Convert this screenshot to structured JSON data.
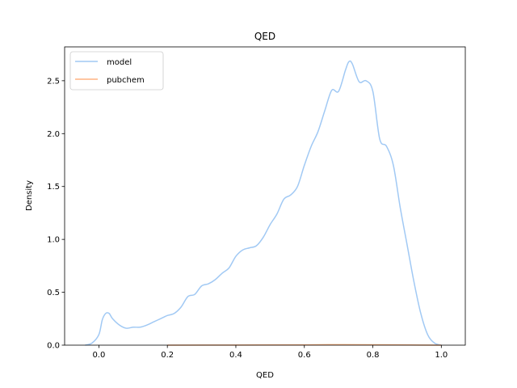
{
  "chart_data": {
    "type": "line",
    "title": "QED",
    "xlabel": "QED",
    "ylabel": "Density",
    "xlim": [
      -0.1,
      1.07
    ],
    "ylim": [
      0,
      2.82
    ],
    "xticks": [
      0.0,
      0.2,
      0.4,
      0.6,
      0.8,
      1.0
    ],
    "xtick_labels": [
      "0.0",
      "0.2",
      "0.4",
      "0.6",
      "0.8",
      "1.0"
    ],
    "yticks": [
      0.0,
      0.5,
      1.0,
      1.5,
      2.0,
      2.5
    ],
    "ytick_labels": [
      "0.0",
      "0.5",
      "1.0",
      "1.5",
      "2.0",
      "2.5"
    ],
    "grid": false,
    "legend_position": "top-left",
    "series": [
      {
        "name": "model",
        "color": "#a1c9f4",
        "x": [
          -0.04,
          -0.02,
          0.0,
          0.01,
          0.02,
          0.03,
          0.04,
          0.06,
          0.08,
          0.1,
          0.12,
          0.14,
          0.16,
          0.18,
          0.2,
          0.22,
          0.24,
          0.26,
          0.28,
          0.3,
          0.32,
          0.34,
          0.36,
          0.38,
          0.4,
          0.42,
          0.44,
          0.46,
          0.48,
          0.5,
          0.52,
          0.54,
          0.56,
          0.58,
          0.6,
          0.62,
          0.64,
          0.66,
          0.68,
          0.7,
          0.72,
          0.73,
          0.74,
          0.76,
          0.78,
          0.8,
          0.82,
          0.84,
          0.86,
          0.88,
          0.9,
          0.92,
          0.94,
          0.96,
          0.98,
          1.0
        ],
        "y": [
          0.0,
          0.02,
          0.1,
          0.24,
          0.3,
          0.3,
          0.25,
          0.19,
          0.16,
          0.17,
          0.17,
          0.19,
          0.22,
          0.25,
          0.28,
          0.3,
          0.36,
          0.46,
          0.48,
          0.56,
          0.58,
          0.62,
          0.68,
          0.73,
          0.84,
          0.9,
          0.92,
          0.94,
          1.02,
          1.14,
          1.24,
          1.38,
          1.42,
          1.5,
          1.7,
          1.88,
          2.02,
          2.22,
          2.41,
          2.4,
          2.6,
          2.68,
          2.66,
          2.49,
          2.5,
          2.4,
          1.95,
          1.88,
          1.7,
          1.3,
          0.95,
          0.6,
          0.3,
          0.1,
          0.02,
          0.0
        ]
      },
      {
        "name": "pubchem",
        "color": "#ffb482",
        "x": [
          0.2,
          0.4,
          0.6,
          0.7,
          0.8,
          0.9,
          1.0
        ],
        "y": [
          0.0,
          0.001,
          0.003,
          0.005,
          0.004,
          0.002,
          0.0
        ]
      }
    ]
  }
}
